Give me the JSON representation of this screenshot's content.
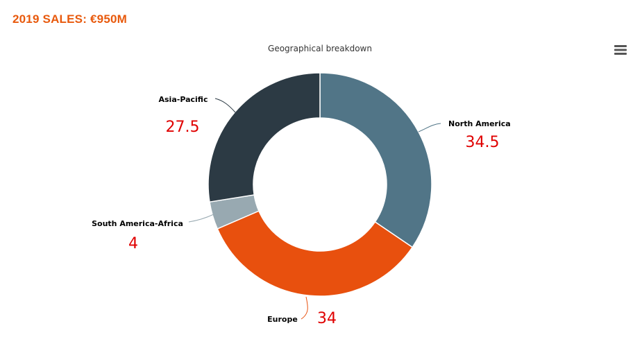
{
  "header": {
    "title": "2019 SALES: €950M"
  },
  "menu": {
    "icon": "hamburger-menu-icon"
  },
  "chart_data": {
    "type": "pie",
    "donut": true,
    "title": "Geographical breakdown",
    "start_angle_deg": 0,
    "direction": "clockwise",
    "slices": [
      {
        "name": "North America",
        "value": 34.5,
        "label": "34.5",
        "color": "#517587"
      },
      {
        "name": "Europe",
        "value": 34,
        "label": "34",
        "color": "#e8500e"
      },
      {
        "name": "South America-Africa",
        "value": 4,
        "label": "4",
        "color": "#98a9b1"
      },
      {
        "name": "Asia-Pacific",
        "value": 27.5,
        "label": "27.5",
        "color": "#2c3a44"
      }
    ]
  }
}
